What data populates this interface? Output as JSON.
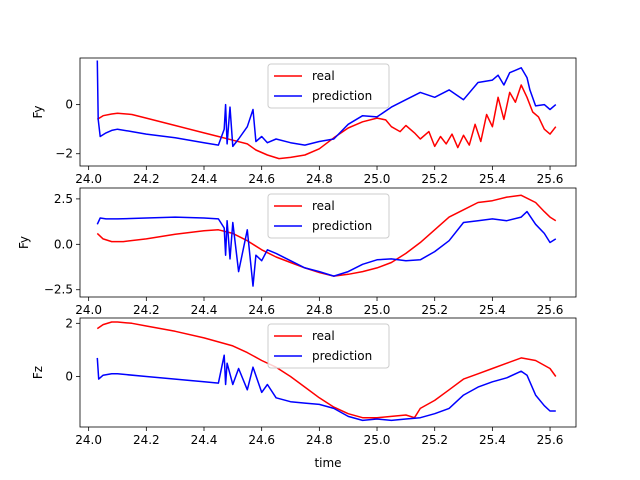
{
  "chart_data": [
    {
      "type": "line",
      "ylabel": "Fy",
      "xlabel": "",
      "xlim": [
        23.97,
        25.69
      ],
      "ylim": [
        -2.5,
        1.9
      ],
      "xticks": [
        24.0,
        24.2,
        24.4,
        24.6,
        24.8,
        25.0,
        25.2,
        25.4,
        25.6
      ],
      "xtick_labels": [
        "24.0",
        "24.2",
        "24.4",
        "24.6",
        "24.8",
        "25.0",
        "25.2",
        "25.4",
        "25.6"
      ],
      "yticks": [
        -2,
        0
      ],
      "ytick_labels": [
        "−2",
        "0"
      ],
      "legend": {
        "position": "top-center",
        "entries": [
          "real",
          "prediction"
        ]
      },
      "series": [
        {
          "name": "real",
          "color": "#ff0000",
          "x": [
            24.03,
            24.05,
            24.08,
            24.1,
            24.15,
            24.2,
            24.3,
            24.4,
            24.45,
            24.5,
            24.55,
            24.58,
            24.62,
            24.66,
            24.7,
            24.75,
            24.8,
            24.85,
            24.9,
            24.95,
            25.0,
            25.03,
            25.05,
            25.08,
            25.1,
            25.13,
            25.15,
            25.18,
            25.2,
            25.22,
            25.24,
            25.26,
            25.28,
            25.3,
            25.32,
            25.34,
            25.36,
            25.38,
            25.4,
            25.42,
            25.44,
            25.46,
            25.48,
            25.5,
            25.52,
            25.54,
            25.56,
            25.58,
            25.6,
            25.62
          ],
          "y": [
            -0.6,
            -0.45,
            -0.38,
            -0.35,
            -0.4,
            -0.55,
            -0.85,
            -1.15,
            -1.3,
            -1.45,
            -1.6,
            -1.85,
            -2.05,
            -2.2,
            -2.15,
            -2.05,
            -1.8,
            -1.35,
            -0.95,
            -0.7,
            -0.55,
            -0.62,
            -0.9,
            -1.1,
            -0.85,
            -1.15,
            -1.4,
            -1.1,
            -1.7,
            -1.3,
            -1.6,
            -1.2,
            -1.75,
            -1.25,
            -1.65,
            -0.8,
            -1.5,
            -0.4,
            -0.9,
            0.3,
            -0.6,
            0.5,
            0.1,
            0.8,
            0.3,
            -0.3,
            -0.5,
            -1.0,
            -1.2,
            -0.9
          ]
        },
        {
          "name": "prediction",
          "color": "#0000ff",
          "x": [
            24.03,
            24.033,
            24.04,
            24.06,
            24.08,
            24.1,
            24.15,
            24.2,
            24.3,
            24.4,
            24.45,
            24.47,
            24.475,
            24.48,
            24.49,
            24.5,
            24.52,
            24.55,
            24.57,
            24.58,
            24.6,
            24.62,
            24.65,
            24.7,
            24.75,
            24.8,
            24.85,
            24.9,
            24.95,
            25.0,
            25.05,
            25.1,
            25.15,
            25.2,
            25.25,
            25.3,
            25.35,
            25.4,
            25.42,
            25.44,
            25.46,
            25.48,
            25.5,
            25.52,
            25.53,
            25.55,
            25.58,
            25.6,
            25.62
          ],
          "y": [
            1.8,
            -0.6,
            -1.3,
            -1.15,
            -1.05,
            -1.0,
            -1.1,
            -1.2,
            -1.35,
            -1.55,
            -1.65,
            -1.0,
            0.0,
            -1.6,
            -0.1,
            -1.7,
            -1.4,
            -0.9,
            -0.2,
            -1.5,
            -1.3,
            -1.55,
            -1.4,
            -1.55,
            -1.65,
            -1.5,
            -1.4,
            -0.8,
            -0.45,
            -0.5,
            -0.1,
            0.2,
            0.5,
            0.3,
            0.6,
            0.2,
            0.9,
            1.0,
            1.2,
            0.8,
            1.3,
            1.4,
            1.5,
            1.1,
            0.6,
            -0.05,
            0.0,
            -0.2,
            0.0
          ]
        }
      ]
    },
    {
      "type": "line",
      "ylabel": "Fy",
      "xlabel": "",
      "xlim": [
        23.97,
        25.69
      ],
      "ylim": [
        -2.9,
        3.1
      ],
      "xticks": [
        24.0,
        24.2,
        24.4,
        24.6,
        24.8,
        25.0,
        25.2,
        25.4,
        25.6
      ],
      "xtick_labels": [
        "24.0",
        "24.2",
        "24.4",
        "24.6",
        "24.8",
        "25.0",
        "25.2",
        "25.4",
        "25.6"
      ],
      "yticks": [
        -2.5,
        0.0,
        2.5
      ],
      "ytick_labels": [
        "−2.5",
        "0.0",
        "2.5"
      ],
      "legend": {
        "position": "top-center",
        "entries": [
          "real",
          "prediction"
        ]
      },
      "series": [
        {
          "name": "real",
          "color": "#ff0000",
          "x": [
            24.03,
            24.05,
            24.08,
            24.12,
            24.2,
            24.3,
            24.4,
            24.45,
            24.5,
            24.55,
            24.6,
            24.65,
            24.7,
            24.75,
            24.8,
            24.85,
            24.9,
            24.95,
            25.0,
            25.05,
            25.1,
            25.15,
            25.2,
            25.25,
            25.3,
            25.35,
            25.4,
            25.45,
            25.5,
            25.55,
            25.58,
            25.6,
            25.62
          ],
          "y": [
            0.6,
            0.3,
            0.15,
            0.15,
            0.3,
            0.55,
            0.75,
            0.8,
            0.6,
            0.2,
            -0.3,
            -0.7,
            -1.0,
            -1.3,
            -1.55,
            -1.75,
            -1.65,
            -1.5,
            -1.3,
            -1.0,
            -0.5,
            0.1,
            0.8,
            1.5,
            1.9,
            2.3,
            2.4,
            2.6,
            2.7,
            2.3,
            1.8,
            1.5,
            1.3
          ]
        },
        {
          "name": "prediction",
          "color": "#0000ff",
          "x": [
            24.03,
            24.04,
            24.06,
            24.1,
            24.2,
            24.3,
            24.4,
            24.45,
            24.47,
            24.475,
            24.48,
            24.49,
            24.5,
            24.52,
            24.55,
            24.57,
            24.58,
            24.6,
            24.62,
            24.65,
            24.7,
            24.75,
            24.8,
            24.85,
            24.9,
            24.95,
            25.0,
            25.05,
            25.1,
            25.15,
            25.2,
            25.25,
            25.3,
            25.35,
            25.4,
            25.45,
            25.5,
            25.52,
            25.55,
            25.58,
            25.6,
            25.62
          ],
          "y": [
            1.1,
            1.45,
            1.4,
            1.4,
            1.45,
            1.5,
            1.45,
            1.4,
            0.9,
            -0.6,
            1.3,
            -0.8,
            1.2,
            -1.5,
            0.8,
            -2.3,
            -0.6,
            -0.9,
            -0.3,
            -0.5,
            -0.9,
            -1.3,
            -1.5,
            -1.75,
            -1.5,
            -1.1,
            -0.85,
            -0.8,
            -0.9,
            -0.85,
            -0.4,
            0.2,
            1.2,
            1.3,
            1.4,
            1.3,
            1.5,
            1.8,
            1.1,
            0.6,
            0.1,
            0.3
          ]
        }
      ]
    },
    {
      "type": "line",
      "ylabel": "Fz",
      "xlabel": "time",
      "xlim": [
        23.97,
        25.69
      ],
      "ylim": [
        -1.9,
        2.2
      ],
      "xticks": [
        24.0,
        24.2,
        24.4,
        24.6,
        24.8,
        25.0,
        25.2,
        25.4,
        25.6
      ],
      "xtick_labels": [
        "24.0",
        "24.2",
        "24.4",
        "24.6",
        "24.8",
        "25.0",
        "25.2",
        "25.4",
        "25.6"
      ],
      "yticks": [
        0,
        2
      ],
      "ytick_labels": [
        "0",
        "2"
      ],
      "legend": {
        "position": "top-center",
        "entries": [
          "real",
          "prediction"
        ]
      },
      "series": [
        {
          "name": "real",
          "color": "#ff0000",
          "x": [
            24.03,
            24.05,
            24.08,
            24.1,
            24.15,
            24.2,
            24.3,
            24.4,
            24.5,
            24.55,
            24.6,
            24.65,
            24.7,
            24.75,
            24.8,
            24.85,
            24.9,
            24.95,
            25.0,
            25.05,
            25.1,
            25.13,
            25.15,
            25.2,
            25.25,
            25.3,
            25.35,
            25.4,
            25.45,
            25.5,
            25.55,
            25.6,
            25.62
          ],
          "y": [
            1.8,
            1.95,
            2.05,
            2.05,
            2.0,
            1.9,
            1.7,
            1.45,
            1.15,
            0.9,
            0.6,
            0.35,
            0.0,
            -0.4,
            -0.8,
            -1.15,
            -1.4,
            -1.55,
            -1.55,
            -1.5,
            -1.45,
            -1.55,
            -1.2,
            -0.9,
            -0.5,
            -0.1,
            0.1,
            0.3,
            0.5,
            0.7,
            0.6,
            0.3,
            0.0
          ]
        },
        {
          "name": "prediction",
          "color": "#0000ff",
          "x": [
            24.03,
            24.035,
            24.05,
            24.08,
            24.1,
            24.2,
            24.3,
            24.4,
            24.45,
            24.47,
            24.475,
            24.48,
            24.5,
            24.52,
            24.55,
            24.57,
            24.6,
            24.62,
            24.65,
            24.7,
            24.75,
            24.8,
            24.85,
            24.9,
            24.95,
            25.0,
            25.05,
            25.1,
            25.15,
            25.2,
            25.25,
            25.3,
            25.35,
            25.4,
            25.45,
            25.5,
            25.52,
            25.55,
            25.58,
            25.6,
            25.62
          ],
          "y": [
            0.7,
            -0.1,
            0.05,
            0.1,
            0.1,
            0.0,
            -0.1,
            -0.2,
            -0.25,
            0.8,
            -0.3,
            0.5,
            -0.3,
            0.3,
            -0.5,
            0.35,
            -0.6,
            -0.3,
            -0.8,
            -0.95,
            -1.0,
            -1.05,
            -1.2,
            -1.5,
            -1.65,
            -1.6,
            -1.65,
            -1.6,
            -1.55,
            -1.4,
            -1.2,
            -0.7,
            -0.4,
            -0.2,
            -0.05,
            0.2,
            0.05,
            -0.7,
            -1.1,
            -1.3,
            -1.3
          ]
        }
      ]
    }
  ]
}
